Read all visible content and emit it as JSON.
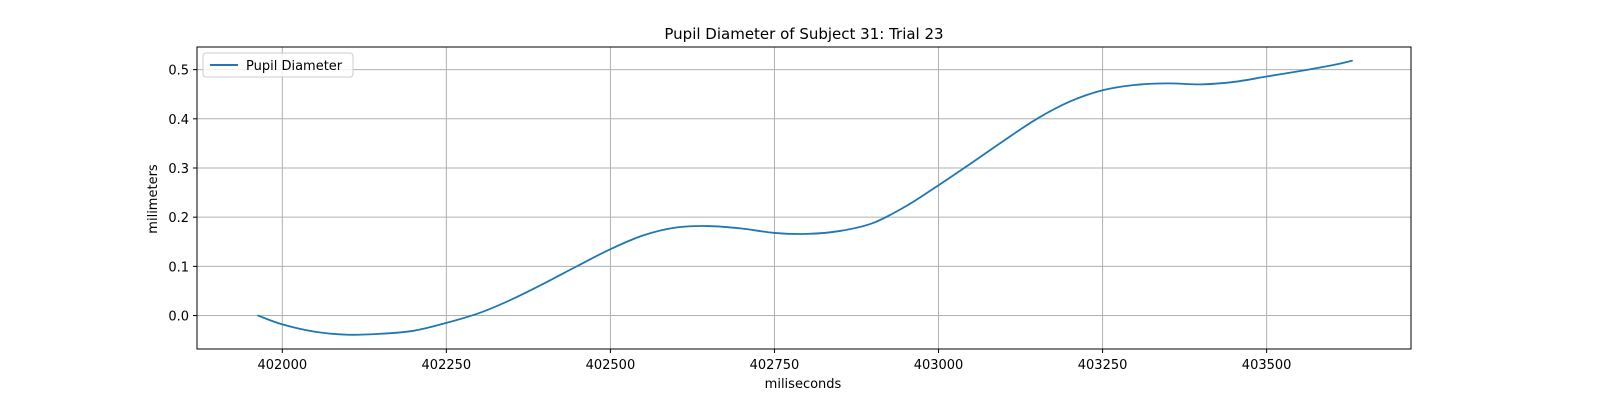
{
  "chart_data": {
    "type": "line",
    "title": "Pupil Diameter of Subject 31: Trial 23",
    "xlabel": "miliseconds",
    "ylabel": "milimeters",
    "xlim": [
      401870,
      403720
    ],
    "ylim": [
      -0.068,
      0.546
    ],
    "xticks": [
      402000,
      402250,
      402500,
      402750,
      403000,
      403250,
      403500
    ],
    "xtick_labels": [
      "402000",
      "402250",
      "402500",
      "402750",
      "403000",
      "403250",
      "403500"
    ],
    "yticks": [
      0.0,
      0.1,
      0.2,
      0.3,
      0.4,
      0.5
    ],
    "ytick_labels": [
      "0.0",
      "0.1",
      "0.2",
      "0.3",
      "0.4",
      "0.5"
    ],
    "grid": true,
    "legend_position": "top-left",
    "series": [
      {
        "name": "Pupil Diameter",
        "color": "#1f77b4",
        "x": [
          401963,
          402000,
          402050,
          402100,
          402150,
          402200,
          402250,
          402300,
          402350,
          402400,
          402450,
          402500,
          402550,
          402600,
          402650,
          402700,
          402750,
          402800,
          402850,
          402900,
          402950,
          403000,
          403050,
          403100,
          403150,
          403200,
          403250,
          403300,
          403350,
          403400,
          403450,
          403500,
          403550,
          403600,
          403630
        ],
        "y": [
          0.0,
          -0.018,
          -0.033,
          -0.039,
          -0.037,
          -0.031,
          -0.015,
          0.005,
          0.033,
          0.066,
          0.101,
          0.135,
          0.163,
          0.179,
          0.182,
          0.177,
          0.168,
          0.166,
          0.172,
          0.188,
          0.222,
          0.265,
          0.31,
          0.356,
          0.4,
          0.435,
          0.458,
          0.469,
          0.472,
          0.47,
          0.475,
          0.486,
          0.497,
          0.509,
          0.518
        ]
      }
    ]
  }
}
